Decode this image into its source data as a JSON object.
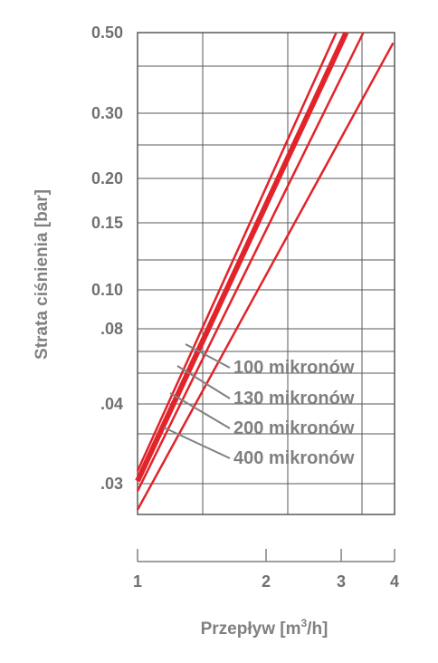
{
  "chart_data": {
    "type": "line",
    "xlabel_main": "Przepływ [m",
    "xlabel_sup": "3",
    "xlabel_tail": "/h]",
    "ylabel": "Strata ciśnienia [bar]",
    "x_scale": "log",
    "y_scale": "log",
    "xlim": [
      1,
      4
    ],
    "ylim": [
      0.028,
      0.5
    ],
    "x_ticks": [
      {
        "value": 1,
        "label": "1"
      },
      {
        "value": 2,
        "label": "2"
      },
      {
        "value": 3,
        "label": "3"
      },
      {
        "value": 4,
        "label": "4"
      }
    ],
    "y_ticks": [
      {
        "value": 0.5,
        "label": "0.50"
      },
      {
        "value": 0.3,
        "label": "0.30"
      },
      {
        "value": 0.2,
        "label": "0.20"
      },
      {
        "value": 0.15,
        "label": "0.15"
      },
      {
        "value": 0.1,
        "label": "0.10"
      },
      {
        "value": 0.08,
        "label": ".08"
      },
      {
        "value": 0.04,
        "label": ".04"
      },
      {
        "value": 0.03,
        "label": ".03"
      }
    ],
    "grid": true,
    "line_color": "#e2232a",
    "leader_color": "#808080",
    "series": [
      {
        "name": "100 mikronów",
        "points": [
          [
            1,
            0.0363
          ],
          [
            2.92,
            0.5
          ]
        ],
        "thick": false
      },
      {
        "name": "130 mikronów",
        "points": [
          [
            1,
            0.0342
          ],
          [
            3.08,
            0.5
          ]
        ],
        "thick": true
      },
      {
        "name": "200 mikronów",
        "points": [
          [
            1,
            0.0322
          ],
          [
            3.38,
            0.5
          ]
        ],
        "thick": false
      },
      {
        "name": "400 mikronów",
        "points": [
          [
            1,
            0.0288
          ],
          [
            3.97,
            0.47
          ]
        ],
        "thick": false
      }
    ]
  }
}
